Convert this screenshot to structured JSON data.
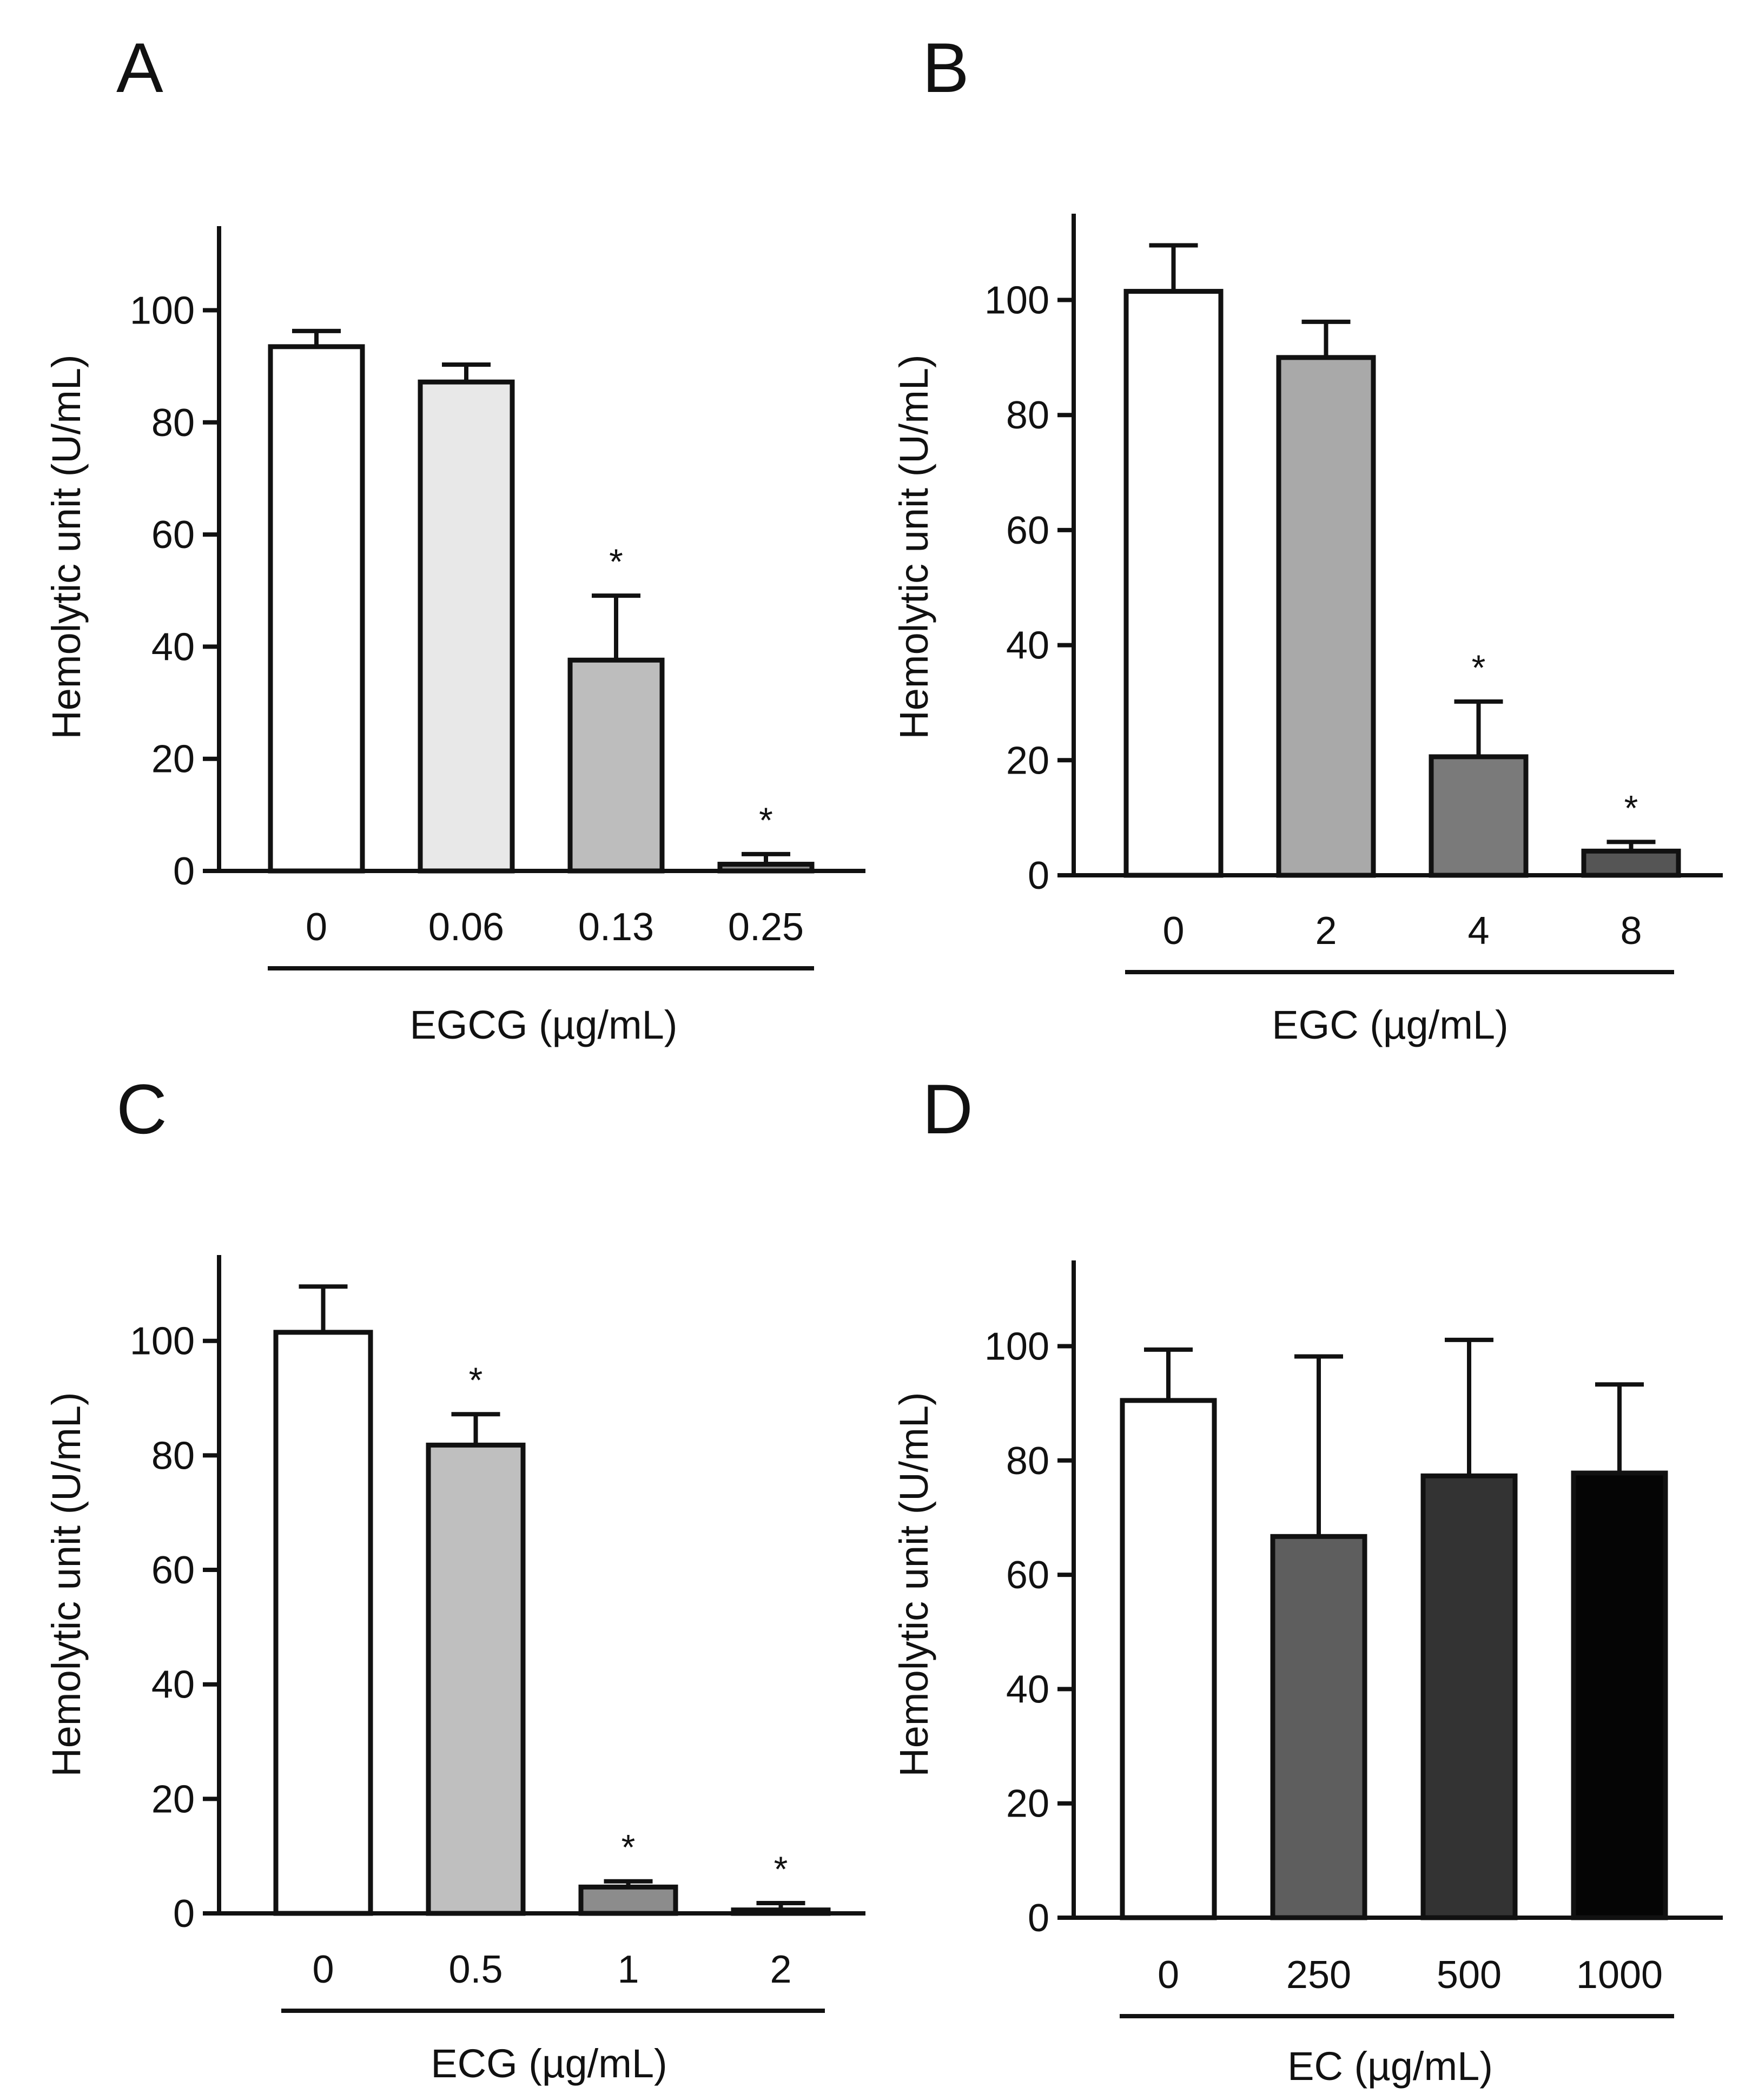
{
  "figure": {
    "background": "#ffffff",
    "ink": "#111111"
  },
  "chart_data": [
    {
      "panel": "A",
      "type": "bar",
      "xlabel": "EGCG (µg/mL)",
      "ylabel": "Hemolytic unit (U/mL)",
      "ylim": [
        0,
        115
      ],
      "yticks": [
        0,
        20,
        40,
        60,
        80,
        100
      ],
      "categories": [
        "0",
        "0.06",
        "0.13",
        "0.25"
      ],
      "values": [
        93.5,
        87.2,
        37.6,
        1.2
      ],
      "errors": [
        2.8,
        3.1,
        11.5,
        1.8
      ],
      "significance": [
        "",
        "",
        "*",
        "*"
      ],
      "fill_colors": [
        "#ffffff",
        "#e8e8e8",
        "#bdbdbd",
        "#8c8c8c"
      ]
    },
    {
      "panel": "B",
      "type": "bar",
      "xlabel": "EGC (µg/mL)",
      "ylabel": "Hemolytic unit (U/mL)",
      "ylim": [
        0,
        115
      ],
      "yticks": [
        0,
        20,
        40,
        60,
        80,
        100
      ],
      "categories": [
        "0",
        "2",
        "4",
        "8"
      ],
      "values": [
        101.5,
        90.0,
        20.6,
        4.2
      ],
      "errors": [
        8.0,
        6.2,
        9.6,
        1.6
      ],
      "significance": [
        "",
        "",
        "*",
        "*"
      ],
      "fill_colors": [
        "#ffffff",
        "#a9a9a9",
        "#7a7a7a",
        "#555555"
      ]
    },
    {
      "panel": "C",
      "type": "bar",
      "xlabel": "ECG (µg/mL)",
      "ylabel": "Hemolytic unit (U/mL)",
      "ylim": [
        0,
        115
      ],
      "yticks": [
        0,
        20,
        40,
        60,
        80,
        100
      ],
      "categories": [
        "0",
        "0.5",
        "1",
        "2"
      ],
      "values": [
        101.5,
        81.8,
        4.6,
        0.6
      ],
      "errors": [
        8.0,
        5.4,
        1.0,
        1.2
      ],
      "significance": [
        "",
        "*",
        "*",
        "*"
      ],
      "fill_colors": [
        "#ffffff",
        "#bfbfbf",
        "#8c8c8c",
        "#5a5a5a"
      ]
    },
    {
      "panel": "D",
      "type": "bar",
      "xlabel": "EC (µg/mL)",
      "ylabel": "Hemolytic unit (U/mL)",
      "ylim": [
        0,
        115
      ],
      "yticks": [
        0,
        20,
        40,
        60,
        80,
        100
      ],
      "categories": [
        "0",
        "250",
        "500",
        "1000"
      ],
      "values": [
        90.5,
        66.7,
        77.3,
        77.8
      ],
      "errors": [
        8.9,
        31.5,
        23.8,
        15.5
      ],
      "significance": [
        "",
        "",
        "",
        ""
      ],
      "fill_colors": [
        "#ffffff",
        "#5e5e5e",
        "#333333",
        "#050505"
      ]
    }
  ]
}
